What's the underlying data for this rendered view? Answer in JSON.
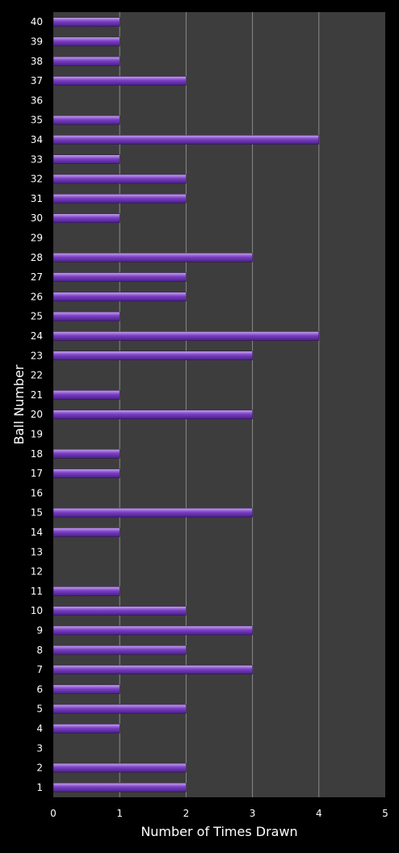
{
  "chart_data": {
    "type": "bar",
    "orientation": "horizontal",
    "xlabel": "Number of Times Drawn",
    "ylabel": "Ball Number",
    "xlim": [
      0,
      5
    ],
    "x_ticks": [
      "0",
      "1",
      "2",
      "3",
      "4",
      "5"
    ],
    "grid": true,
    "legend": "none",
    "categories": [
      "1",
      "2",
      "3",
      "4",
      "5",
      "6",
      "7",
      "8",
      "9",
      "10",
      "11",
      "12",
      "13",
      "14",
      "15",
      "16",
      "17",
      "18",
      "19",
      "20",
      "21",
      "22",
      "23",
      "24",
      "25",
      "26",
      "27",
      "28",
      "29",
      "30",
      "31",
      "32",
      "33",
      "34",
      "35",
      "36",
      "37",
      "38",
      "39",
      "40"
    ],
    "values": [
      2,
      2,
      0,
      1,
      2,
      1,
      3,
      2,
      3,
      2,
      1,
      0,
      0,
      1,
      3,
      0,
      1,
      1,
      0,
      3,
      1,
      0,
      3,
      4,
      1,
      2,
      2,
      3,
      0,
      1,
      2,
      2,
      1,
      4,
      1,
      0,
      2,
      1,
      1,
      1
    ],
    "colors": {
      "background": "#000000",
      "plot_area": "#3d3d3d",
      "gridline": "#8a8a8a",
      "bar_top": "#c6a6ee",
      "bar_mid": "#7a3fc4",
      "bar_bottom": "#4a1f86"
    }
  }
}
